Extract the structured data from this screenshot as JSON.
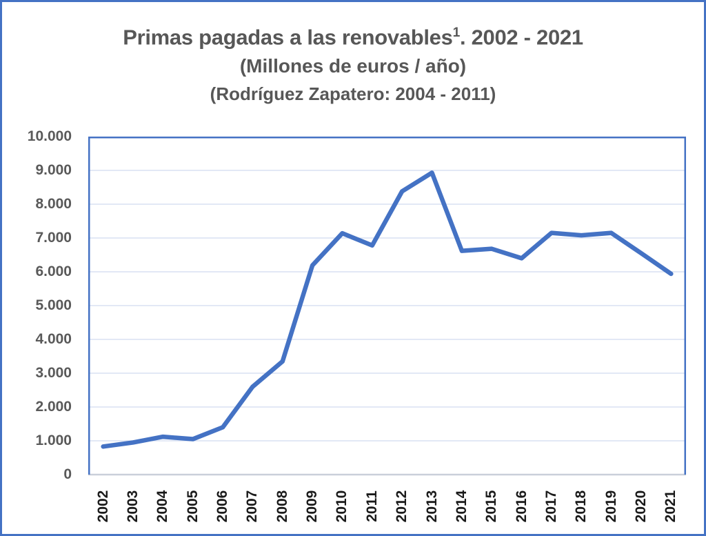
{
  "title": {
    "line1_main": "Primas pagadas a las renovables",
    "line1_sup": "1",
    "line1_rest": ". 2002 - 2021",
    "line2": "(Millones de euros / año)",
    "line3": "(Rodríguez Zapatero: 2004 - 2011)"
  },
  "colors": {
    "frame_border": "#4472C4",
    "series_line": "#4472C4",
    "plot_border": "#4472C4",
    "gridline": "#D9E1F2",
    "x_axis_line": "#C9CFDA",
    "title_text": "#575757",
    "y_label_text": "#595959",
    "x_label_text": "#1A1A1A",
    "background": "#FFFFFF"
  },
  "chart_data": {
    "type": "line",
    "title": "Primas pagadas a las renovables¹. 2002 - 2021",
    "subtitle": "(Millones de euros / año)",
    "subtitle2": "(Rodríguez Zapatero: 2004 - 2011)",
    "xlabel": "",
    "ylabel": "",
    "legend": "none",
    "grid": true,
    "categories": [
      "2002",
      "2003",
      "2004",
      "2005",
      "2006",
      "2007",
      "2008",
      "2009",
      "2010",
      "2011",
      "2012",
      "2013",
      "2014",
      "2015",
      "2016",
      "2017",
      "2018",
      "2019",
      "2020",
      "2021"
    ],
    "series": [
      {
        "name": "Primas pagadas a las renovables (Millones de euros / año)",
        "color": "#4472C4",
        "values": [
          830,
          950,
          1120,
          1050,
          1400,
          2600,
          3350,
          6190,
          7140,
          6780,
          8380,
          8930,
          6620,
          6680,
          6400,
          7150,
          7080,
          7150,
          6550,
          5940
        ]
      }
    ],
    "ylim": [
      0,
      10000
    ],
    "y_ticks": [
      0,
      1000,
      2000,
      3000,
      4000,
      5000,
      6000,
      7000,
      8000,
      9000,
      10000
    ],
    "y_tick_labels": [
      "0",
      "1.000",
      "2.000",
      "3.000",
      "4.000",
      "5.000",
      "6.000",
      "7.000",
      "8.000",
      "9.000",
      "10.000"
    ]
  }
}
